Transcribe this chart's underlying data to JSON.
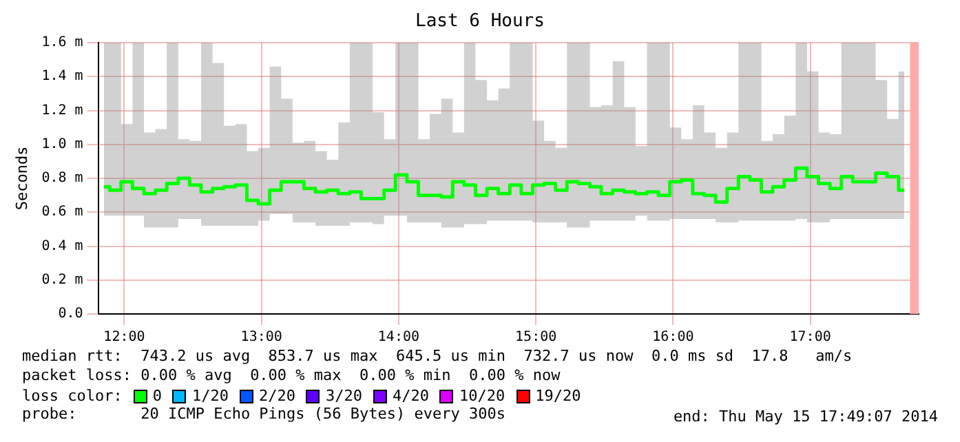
{
  "chart_data": {
    "type": "step",
    "title": "Last 6 Hours",
    "ylabel": "Seconds",
    "legend_title": "loss color:",
    "legend": "bottom",
    "grid": true,
    "xlim": [
      11.81,
      17.79
    ],
    "xticks": [
      {
        "value": 12,
        "label": "12:00"
      },
      {
        "value": 13,
        "label": "13:00"
      },
      {
        "value": 14,
        "label": "14:00"
      },
      {
        "value": 15,
        "label": "15:00"
      },
      {
        "value": 16,
        "label": "16:00"
      },
      {
        "value": 17,
        "label": "17:00"
      }
    ],
    "ylim": [
      0,
      1.6
    ],
    "yticks": [
      {
        "value": 0,
        "label": "0.0"
      },
      {
        "value": 0.2,
        "label": "0.2 m"
      },
      {
        "value": 0.4,
        "label": "0.4 m"
      },
      {
        "value": 0.6,
        "label": "0.6 m"
      },
      {
        "value": 0.8,
        "label": "0.8 m"
      },
      {
        "value": 1.0,
        "label": "1.0 m"
      },
      {
        "value": 1.2,
        "label": "1.2 m"
      },
      {
        "value": 1.4,
        "label": "1.4 m"
      },
      {
        "value": 1.6,
        "label": "1.6 m"
      }
    ],
    "x": [
      11.852,
      11.935,
      12.018,
      12.102,
      12.185,
      12.268,
      12.352,
      12.435,
      12.518,
      12.602,
      12.685,
      12.768,
      12.852,
      12.935,
      13.018,
      13.102,
      13.185,
      13.268,
      13.352,
      13.435,
      13.518,
      13.602,
      13.685,
      13.768,
      13.852,
      13.935,
      14.018,
      14.102,
      14.185,
      14.268,
      14.352,
      14.435,
      14.518,
      14.602,
      14.685,
      14.768,
      14.852,
      14.935,
      15.018,
      15.102,
      15.185,
      15.268,
      15.352,
      15.435,
      15.518,
      15.602,
      15.685,
      15.768,
      15.852,
      15.935,
      16.018,
      16.102,
      16.185,
      16.268,
      16.352,
      16.435,
      16.518,
      16.602,
      16.685,
      16.768,
      16.852,
      16.935,
      17.018,
      17.102,
      17.185,
      17.268,
      17.352,
      17.435,
      17.518,
      17.602,
      17.685
    ],
    "series": [
      {
        "name": "0",
        "color": "#00ff00",
        "values": [
          0.75,
          0.73,
          0.78,
          0.74,
          0.71,
          0.73,
          0.77,
          0.8,
          0.76,
          0.72,
          0.74,
          0.75,
          0.76,
          0.67,
          0.65,
          0.73,
          0.78,
          0.78,
          0.74,
          0.72,
          0.73,
          0.71,
          0.72,
          0.68,
          0.68,
          0.73,
          0.82,
          0.78,
          0.7,
          0.7,
          0.69,
          0.78,
          0.76,
          0.7,
          0.74,
          0.71,
          0.76,
          0.71,
          0.76,
          0.77,
          0.73,
          0.78,
          0.77,
          0.75,
          0.71,
          0.73,
          0.72,
          0.71,
          0.72,
          0.7,
          0.78,
          0.79,
          0.71,
          0.7,
          0.66,
          0.74,
          0.81,
          0.79,
          0.72,
          0.75,
          0.79,
          0.86,
          0.81,
          0.77,
          0.74,
          0.81,
          0.78,
          0.78,
          0.83,
          0.81,
          0.73
        ],
        "lower": [
          0.58,
          0.58,
          0.58,
          0.58,
          0.51,
          0.51,
          0.51,
          0.56,
          0.56,
          0.52,
          0.52,
          0.52,
          0.52,
          0.52,
          0.55,
          0.59,
          0.59,
          0.54,
          0.54,
          0.52,
          0.52,
          0.52,
          0.54,
          0.54,
          0.53,
          0.58,
          0.58,
          0.54,
          0.54,
          0.54,
          0.51,
          0.51,
          0.53,
          0.53,
          0.55,
          0.55,
          0.55,
          0.55,
          0.54,
          0.54,
          0.54,
          0.51,
          0.51,
          0.55,
          0.55,
          0.55,
          0.55,
          0.58,
          0.55,
          0.55,
          0.56,
          0.56,
          0.56,
          0.56,
          0.54,
          0.54,
          0.55,
          0.55,
          0.55,
          0.55,
          0.55,
          0.56,
          0.54,
          0.54,
          0.56,
          0.56,
          0.56,
          0.56,
          0.56,
          0.56,
          0.56
        ],
        "upper": [
          1.6,
          1.6,
          1.12,
          1.6,
          1.07,
          1.09,
          1.6,
          1.03,
          1.02,
          1.6,
          1.48,
          1.11,
          1.12,
          0.96,
          0.98,
          1.46,
          1.27,
          1.01,
          1.02,
          0.96,
          0.91,
          1.13,
          1.6,
          1.6,
          1.19,
          1.03,
          1.6,
          1.6,
          1.03,
          1.18,
          1.27,
          1.07,
          1.6,
          1.38,
          1.26,
          1.33,
          1.6,
          1.6,
          1.14,
          1.02,
          0.98,
          1.6,
          1.6,
          1.22,
          1.23,
          1.49,
          1.22,
          0.99,
          1.6,
          1.6,
          1.1,
          1.03,
          1.23,
          1.07,
          0.98,
          1.07,
          1.6,
          1.6,
          1.02,
          1.06,
          1.17,
          1.6,
          1.43,
          1.07,
          1.06,
          1.6,
          1.6,
          1.6,
          1.38,
          1.15,
          1.43
        ]
      },
      {
        "name": "1/20",
        "color": "#00b8ff",
        "values": [
          null,
          null,
          null,
          null,
          null,
          null,
          null,
          null,
          null,
          null,
          null,
          null,
          null,
          null,
          null,
          null,
          null,
          null,
          null,
          null,
          null,
          null,
          null,
          null,
          null,
          null,
          null,
          null,
          null,
          null,
          null,
          null,
          null,
          null,
          null,
          null,
          null,
          null,
          null,
          null,
          null,
          null,
          null,
          null,
          null,
          null,
          null,
          null,
          null,
          null,
          null,
          null,
          null,
          null,
          null,
          null,
          null,
          null,
          null,
          null,
          null,
          null,
          null,
          null,
          null,
          null,
          null,
          null,
          null,
          null,
          null
        ]
      },
      {
        "name": "2/20",
        "color": "#0059ff",
        "values": [
          null,
          null,
          null,
          null,
          null,
          null,
          null,
          null,
          null,
          null,
          null,
          null,
          null,
          null,
          null,
          null,
          null,
          null,
          null,
          null,
          null,
          null,
          null,
          null,
          null,
          null,
          null,
          null,
          null,
          null,
          null,
          null,
          null,
          null,
          null,
          null,
          null,
          null,
          null,
          null,
          null,
          null,
          null,
          null,
          null,
          null,
          null,
          null,
          null,
          null,
          null,
          null,
          null,
          null,
          null,
          null,
          null,
          null,
          null,
          null,
          null,
          null,
          null,
          null,
          null,
          null,
          null,
          null,
          null,
          null,
          null
        ]
      },
      {
        "name": "3/20",
        "color": "#5e00ff",
        "values": [
          null,
          null,
          null,
          null,
          null,
          null,
          null,
          null,
          null,
          null,
          null,
          null,
          null,
          null,
          null,
          null,
          null,
          null,
          null,
          null,
          null,
          null,
          null,
          null,
          null,
          null,
          null,
          null,
          null,
          null,
          null,
          null,
          null,
          null,
          null,
          null,
          null,
          null,
          null,
          null,
          null,
          null,
          null,
          null,
          null,
          null,
          null,
          null,
          null,
          null,
          null,
          null,
          null,
          null,
          null,
          null,
          null,
          null,
          null,
          null,
          null,
          null,
          null,
          null,
          null,
          null,
          null,
          null,
          null,
          null,
          null
        ]
      },
      {
        "name": "4/20",
        "color": "#7e00ff",
        "values": [
          null,
          null,
          null,
          null,
          null,
          null,
          null,
          null,
          null,
          null,
          null,
          null,
          null,
          null,
          null,
          null,
          null,
          null,
          null,
          null,
          null,
          null,
          null,
          null,
          null,
          null,
          null,
          null,
          null,
          null,
          null,
          null,
          null,
          null,
          null,
          null,
          null,
          null,
          null,
          null,
          null,
          null,
          null,
          null,
          null,
          null,
          null,
          null,
          null,
          null,
          null,
          null,
          null,
          null,
          null,
          null,
          null,
          null,
          null,
          null,
          null,
          null,
          null,
          null,
          null,
          null,
          null,
          null,
          null,
          null,
          null
        ]
      },
      {
        "name": "10/20",
        "color": "#dd00ff",
        "values": [
          null,
          null,
          null,
          null,
          null,
          null,
          null,
          null,
          null,
          null,
          null,
          null,
          null,
          null,
          null,
          null,
          null,
          null,
          null,
          null,
          null,
          null,
          null,
          null,
          null,
          null,
          null,
          null,
          null,
          null,
          null,
          null,
          null,
          null,
          null,
          null,
          null,
          null,
          null,
          null,
          null,
          null,
          null,
          null,
          null,
          null,
          null,
          null,
          null,
          null,
          null,
          null,
          null,
          null,
          null,
          null,
          null,
          null,
          null,
          null,
          null,
          null,
          null,
          null,
          null,
          null,
          null,
          null,
          null,
          null,
          null
        ]
      },
      {
        "name": "19/20",
        "color": "#ff0000",
        "values": [
          null,
          null,
          null,
          null,
          null,
          null,
          null,
          null,
          null,
          null,
          null,
          null,
          null,
          null,
          null,
          null,
          null,
          null,
          null,
          null,
          null,
          null,
          null,
          null,
          null,
          null,
          null,
          null,
          null,
          null,
          null,
          null,
          null,
          null,
          null,
          null,
          null,
          null,
          null,
          null,
          null,
          null,
          null,
          null,
          null,
          null,
          null,
          null,
          null,
          null,
          null,
          null,
          null,
          null,
          null,
          null,
          null,
          null,
          null,
          null,
          null,
          null,
          null,
          null,
          null,
          null,
          null,
          null,
          null,
          null,
          null
        ]
      }
    ],
    "bands": [
      {
        "axis": "x",
        "from": 17.727,
        "to": 17.79,
        "color": "#ffaaaa"
      }
    ],
    "annotations": [
      "median rtt:  743.2 us avg  853.7 us max  645.5 us min  732.7 us now  0.0 ms sd  17.8   am/s",
      "packet loss: 0.00 % avg  0.00 % max  0.00 % min  0.00 % now",
      "probe:       20 ICMP Echo Pings (56 Bytes) every 300s",
      "end: Thu May 15 17:49:07 2014"
    ]
  }
}
